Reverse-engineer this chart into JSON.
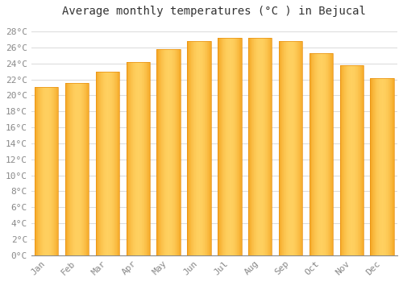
{
  "title": "Average monthly temperatures (°C ) in Bejucal",
  "months": [
    "Jan",
    "Feb",
    "Mar",
    "Apr",
    "May",
    "Jun",
    "Jul",
    "Aug",
    "Sep",
    "Oct",
    "Nov",
    "Dec"
  ],
  "values": [
    21.0,
    21.5,
    23.0,
    24.2,
    25.8,
    26.8,
    27.2,
    27.2,
    26.8,
    25.3,
    23.8,
    22.2
  ],
  "bar_color_left": "#F5A623",
  "bar_color_center": "#FFD060",
  "bar_color_right": "#E89010",
  "background_color": "#FFFFFF",
  "grid_color": "#DDDDDD",
  "title_fontsize": 10,
  "tick_fontsize": 8,
  "ylim": [
    0,
    29
  ],
  "ytick_step": 2,
  "tick_color": "#888888",
  "title_color": "#333333"
}
